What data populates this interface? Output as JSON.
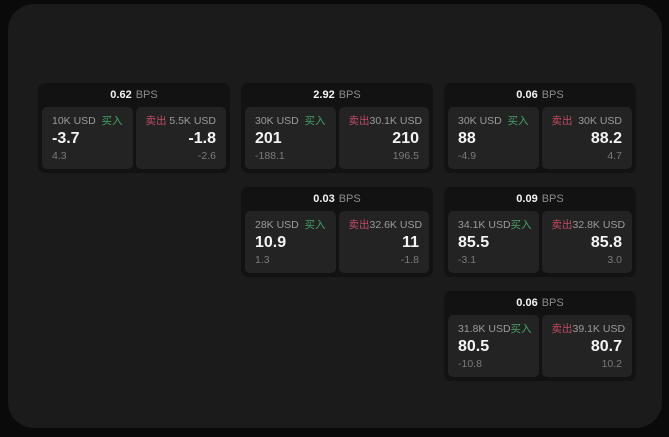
{
  "labels": {
    "bps_unit": "BPS",
    "buy": "买入",
    "sell": "卖出"
  },
  "colors": {
    "background": "#0a0a0a",
    "surface": "#1b1b1c",
    "card": "#121213",
    "panel": "#232324",
    "buy_green": "#45a266",
    "sell_red": "#c04b63",
    "value_white": "#f4f4f4",
    "label_gray": "#9b9b9b",
    "muted_gray": "#7a7a7a",
    "header_gray": "#8b8b8b"
  },
  "cards": [
    {
      "row": 1,
      "col": 1,
      "bps": "0.62",
      "buy": {
        "amount": "10K USD",
        "value": "-3.7",
        "sub": "4.3"
      },
      "sell": {
        "amount": "5.5K USD",
        "value": "-1.8",
        "sub": "-2.6"
      }
    },
    {
      "row": 1,
      "col": 2,
      "bps": "2.92",
      "buy": {
        "amount": "30K USD",
        "value": "201",
        "sub": "-188.1"
      },
      "sell": {
        "amount": "30.1K USD",
        "value": "210",
        "sub": "196.5"
      }
    },
    {
      "row": 1,
      "col": 3,
      "bps": "0.06",
      "buy": {
        "amount": "30K USD",
        "value": "88",
        "sub": "-4.9"
      },
      "sell": {
        "amount": "30K USD",
        "value": "88.2",
        "sub": "4.7"
      }
    },
    {
      "row": 2,
      "col": 2,
      "bps": "0.03",
      "buy": {
        "amount": "28K USD",
        "value": "10.9",
        "sub": "1.3"
      },
      "sell": {
        "amount": "32.6K USD",
        "value": "11",
        "sub": "-1.8"
      }
    },
    {
      "row": 2,
      "col": 3,
      "bps": "0.09",
      "buy": {
        "amount": "34.1K USD",
        "value": "85.5",
        "sub": "-3.1"
      },
      "sell": {
        "amount": "32.8K USD",
        "value": "85.8",
        "sub": "3.0"
      }
    },
    {
      "row": 3,
      "col": 3,
      "bps": "0.06",
      "buy": {
        "amount": "31.8K USD",
        "value": "80.5",
        "sub": "-10.8"
      },
      "sell": {
        "amount": "39.1K USD",
        "value": "80.7",
        "sub": "10.2"
      }
    }
  ]
}
